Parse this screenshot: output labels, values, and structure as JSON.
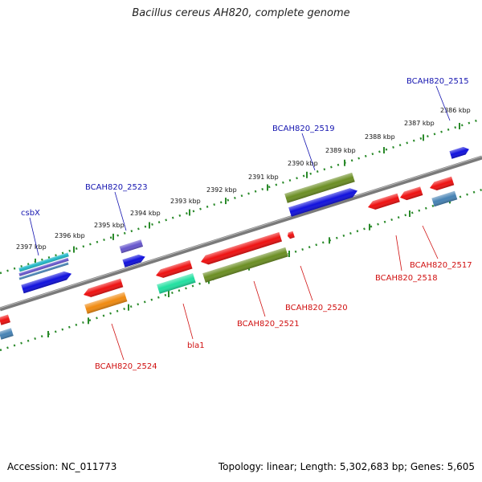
{
  "title": "Bacillus cereus AH820, complete genome",
  "footer": {
    "accession": "Accession: NC_011773",
    "summary": "Topology: linear; Length: 5,302,683 bp; Genes: 5,605"
  },
  "ticks": [
    "2397 kbp",
    "2396 kbp",
    "2395 kbp",
    "2394 kbp",
    "2393 kbp",
    "2392 kbp",
    "2391 kbp",
    "2390 kbp",
    "2389 kbp",
    "2388 kbp",
    "2387 kbp",
    "2386 kbp"
  ],
  "top_labels": [
    "csbX",
    "BCAH820_2523",
    "BCAH820_2519",
    "BCAH820_2515"
  ],
  "bottom_labels": [
    "BCAH820_2524",
    "bla1",
    "BCAH820_2521",
    "BCAH820_2520",
    "BCAH820_2518",
    "BCAH820_2517"
  ],
  "colors": {
    "backbone": "#888888",
    "dots": "#2a8a2a",
    "red": "#ee1111",
    "blue": "#1111dd",
    "olive": "#6b8e23",
    "orange": "#f08a10",
    "teal": "#20e0a0",
    "cyan": "#20b8c8",
    "purple": "#6655cc",
    "steel": "#4682b4"
  }
}
